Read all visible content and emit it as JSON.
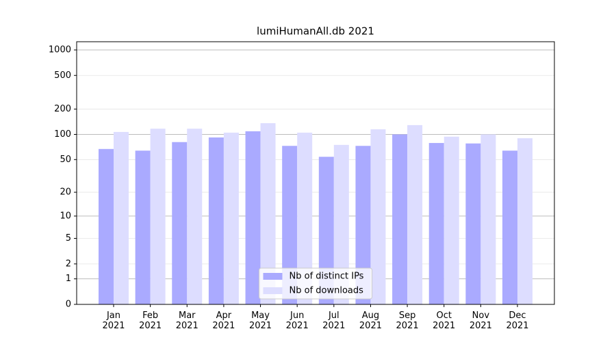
{
  "chart_data": {
    "type": "bar",
    "title": "lumiHumanAll.db 2021",
    "categories": [
      "Jan\n2021",
      "Feb\n2021",
      "Mar\n2021",
      "Apr\n2021",
      "May\n2021",
      "Jun\n2021",
      "Jul\n2021",
      "Aug\n2021",
      "Sep\n2021",
      "Oct\n2021",
      "Nov\n2021",
      "Dec\n2021"
    ],
    "series": [
      {
        "name": "Nb of distinct IPs",
        "color": "#aaaaff",
        "values": [
          67,
          64,
          81,
          92,
          109,
          73,
          54,
          73,
          100,
          79,
          78,
          64
        ]
      },
      {
        "name": "Nb of downloads",
        "color": "#ddddff",
        "values": [
          107,
          117,
          117,
          105,
          136,
          105,
          75,
          115,
          129,
          94,
          100,
          90
        ]
      }
    ],
    "yscale": "log1p",
    "ylim": [
      0,
      1250
    ],
    "yticks": [
      0,
      1,
      2,
      5,
      10,
      20,
      50,
      100,
      200,
      500,
      1000
    ],
    "grid": true,
    "legend": "lower center"
  }
}
